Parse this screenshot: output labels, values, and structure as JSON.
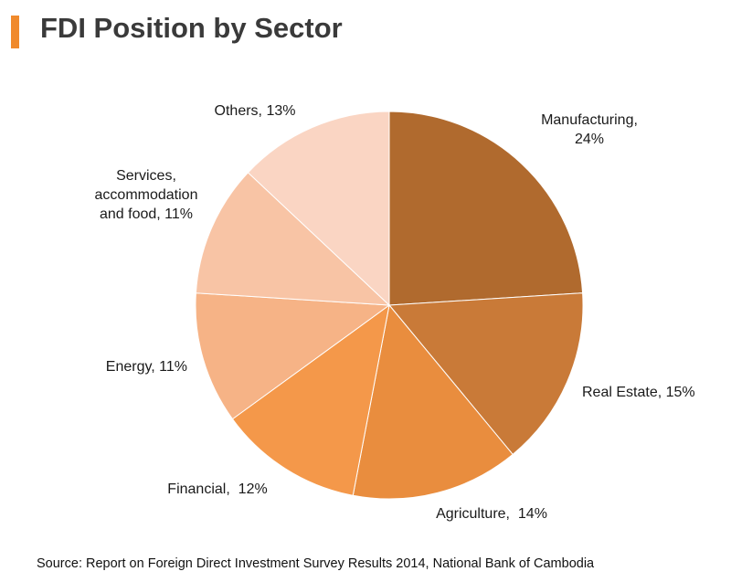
{
  "title": "FDI Position by Sector",
  "source": "Source: Report on Foreign Direct Investment Survey Results 2014, National Bank of Cambodia",
  "chart_data": {
    "type": "pie",
    "title": "FDI Position by Sector",
    "unit": "%",
    "start": "12 o'clock",
    "direction": "clockwise",
    "slices": [
      {
        "name": "Manufacturing",
        "value": 24,
        "color": "#b06a2e",
        "label_lines": [
          "Manufacturing,",
          "24%"
        ]
      },
      {
        "name": "Real Estate",
        "value": 15,
        "color": "#c97a38",
        "label_lines": [
          "Real Estate, 15%"
        ]
      },
      {
        "name": "Agriculture",
        "value": 14,
        "color": "#e98d3e",
        "label_lines": [
          "Agriculture,  14%"
        ]
      },
      {
        "name": "Financial",
        "value": 12,
        "color": "#f4984a",
        "label_lines": [
          "Financial,  12%"
        ]
      },
      {
        "name": "Energy",
        "value": 11,
        "color": "#f6b386",
        "label_lines": [
          "Energy, 11%"
        ]
      },
      {
        "name": "Services, accommodation and food",
        "value": 11,
        "color": "#f8c4a5",
        "label_lines": [
          "Services,",
          "accommodation",
          "and food, 11%"
        ]
      },
      {
        "name": "Others",
        "value": 13,
        "color": "#fad5c3",
        "label_lines": [
          "Others, 13%"
        ]
      }
    ]
  }
}
